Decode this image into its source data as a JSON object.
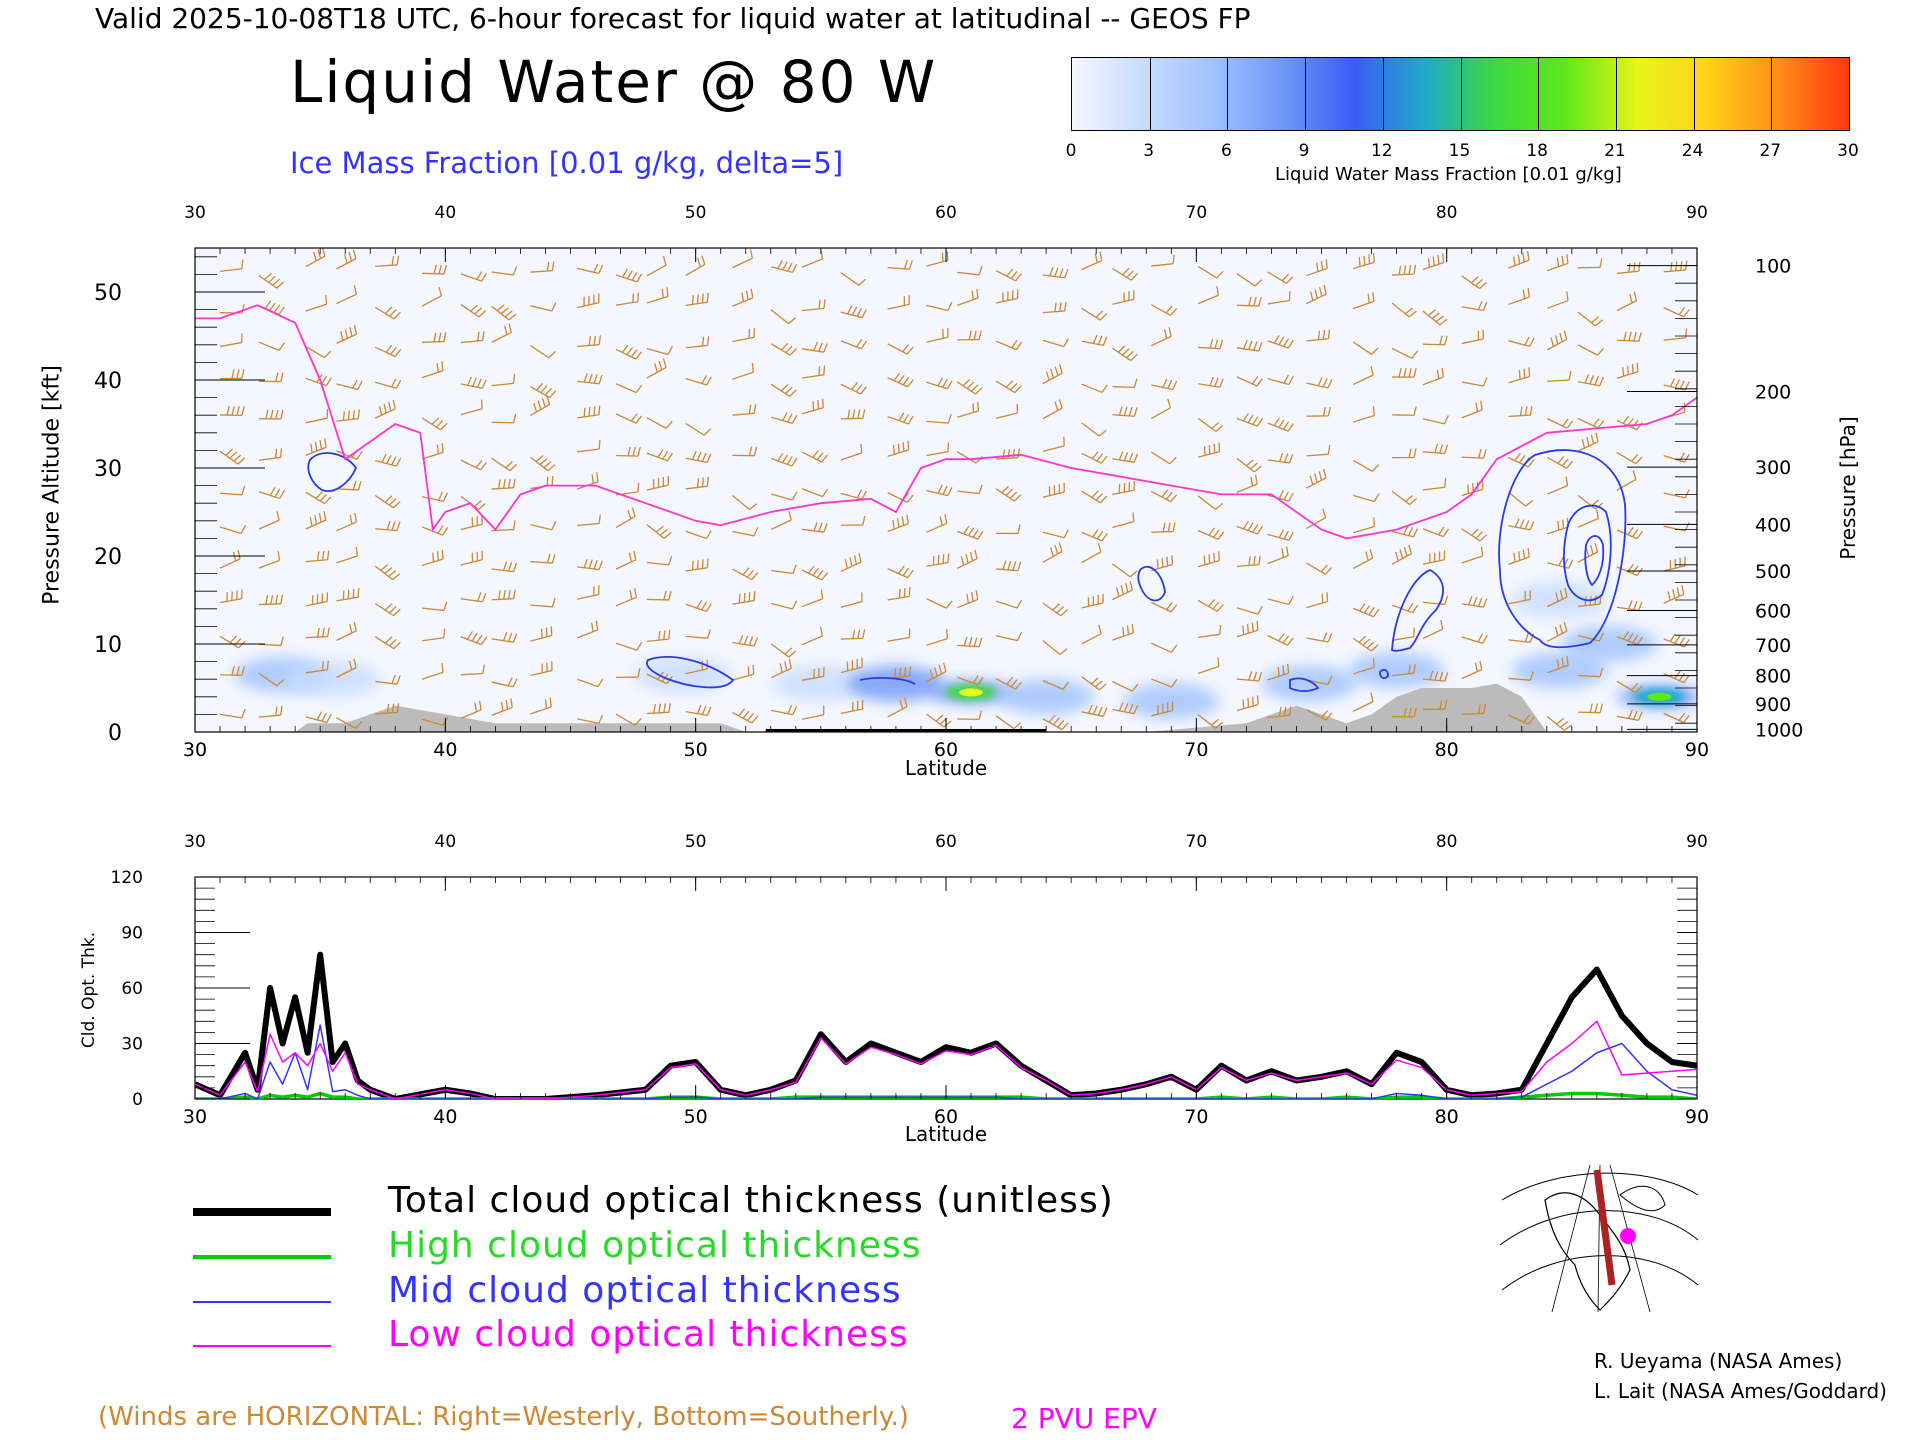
{
  "header": {
    "valid_line": "Valid 2025-10-08T18 UTC, 6-hour forecast for liquid water at latitudinal -- GEOS FP",
    "title": "Liquid Water @ 80 W",
    "subtitle": "Ice Mass Fraction [0.01 g/kg, delta=5]"
  },
  "colorbar": {
    "title": "Liquid Water Mass Fraction [0.01 g/kg]",
    "ticks": [
      "0",
      "3",
      "6",
      "9",
      "12",
      "15",
      "18",
      "21",
      "24",
      "27",
      "30"
    ],
    "colors": [
      "#f4f7ff",
      "#c8dcff",
      "#9fc2ff",
      "#6f96f7",
      "#3c5cf5",
      "#1faac9",
      "#3dd93d",
      "#5fe81a",
      "#e6f51a",
      "#ffd21a",
      "#ff8c1a",
      "#ff3a0a"
    ]
  },
  "colors": {
    "wind_barbs": "#cc8833",
    "pvu_line": "#ff33cc",
    "ice_contours": "#2a3ae6",
    "terrain": "#bbbbbb",
    "total": "#000000",
    "high": "#00cc00",
    "mid": "#3333ff",
    "low": "#ff00ff"
  },
  "chart_data": [
    {
      "type": "heatmap",
      "xlabel": "Latitude",
      "ylabel": "Pressure Altitude [kft]",
      "y2label": "Pressure [hPa]",
      "xlim": [
        30,
        90
      ],
      "ylim": [
        0,
        55
      ],
      "x_ticks": [
        "30",
        "40",
        "50",
        "60",
        "70",
        "80",
        "90"
      ],
      "y_ticks": [
        "0",
        "10",
        "20",
        "30",
        "40",
        "50"
      ],
      "pressure_ticks": [
        {
          "label": "100",
          "kft": 53.0
        },
        {
          "label": "200",
          "kft": 38.7
        },
        {
          "label": "300",
          "kft": 30.1
        },
        {
          "label": "400",
          "kft": 23.6
        },
        {
          "label": "500",
          "kft": 18.3
        },
        {
          "label": "600",
          "kft": 13.8
        },
        {
          "label": "700",
          "kft": 9.9
        },
        {
          "label": "800",
          "kft": 6.4
        },
        {
          "label": "900",
          "kft": 3.2
        },
        {
          "label": "1000",
          "kft": 0.3
        }
      ],
      "pvu_line": {
        "name": "2 PVU EPV",
        "lat": [
          30,
          31,
          32.5,
          34,
          35,
          36,
          37,
          38,
          39,
          39.5,
          40,
          41,
          42,
          43,
          44,
          45,
          46,
          48,
          50,
          51,
          53,
          55,
          57,
          58,
          59,
          60,
          61,
          63,
          65,
          67,
          69,
          71,
          73,
          75,
          76,
          78,
          80,
          81,
          82,
          84,
          86,
          88,
          89,
          90
        ],
        "kft": [
          47,
          47,
          48.5,
          46.5,
          40,
          31,
          33,
          35,
          34,
          23,
          25,
          26,
          23,
          27,
          28,
          28,
          28,
          26,
          24,
          23.5,
          25,
          26,
          26.5,
          25,
          30,
          31,
          31,
          31.5,
          30,
          29,
          28,
          27,
          27,
          23,
          22,
          23,
          25,
          27,
          31,
          34,
          34.5,
          35,
          36,
          38
        ]
      },
      "terrain": {
        "lat": [
          30,
          34,
          34.5,
          36,
          37,
          38,
          40,
          42,
          44,
          46,
          48,
          50,
          51,
          52,
          53,
          55,
          57,
          60,
          62,
          64,
          66,
          68,
          70,
          72,
          73,
          74,
          75,
          76,
          77,
          78,
          79,
          80,
          81,
          82,
          83,
          84,
          90
        ],
        "kft": [
          0,
          0,
          1,
          1,
          2,
          3,
          2,
          1,
          1,
          1,
          1,
          1,
          1,
          0,
          0,
          0,
          0,
          0,
          0,
          0,
          0,
          0,
          0.5,
          1,
          2,
          3,
          2,
          1,
          2,
          4,
          5,
          5,
          5,
          5.5,
          4,
          0,
          0
        ]
      },
      "liquid_water_blobs": [
        {
          "lat": 33.5,
          "kft": 6.5,
          "value": 6
        },
        {
          "lat": 35.5,
          "kft": 6,
          "value": 4
        },
        {
          "lat": 49.5,
          "kft": 6.5,
          "value": 4
        },
        {
          "lat": 55,
          "kft": 5.5,
          "value": 4
        },
        {
          "lat": 58,
          "kft": 5.5,
          "value": 9
        },
        {
          "lat": 61,
          "kft": 4.5,
          "value": 19
        },
        {
          "lat": 64,
          "kft": 4,
          "value": 5
        },
        {
          "lat": 69,
          "kft": 3.5,
          "value": 6
        },
        {
          "lat": 74.5,
          "kft": 5.5,
          "value": 6
        },
        {
          "lat": 78,
          "kft": 7,
          "value": 6
        },
        {
          "lat": 84.5,
          "kft": 15,
          "value": 4
        },
        {
          "lat": 84.5,
          "kft": 7,
          "value": 5
        },
        {
          "lat": 88.5,
          "kft": 4,
          "value": 17
        },
        {
          "lat": 86.5,
          "kft": 10,
          "value": 6
        }
      ]
    },
    {
      "type": "line",
      "xlabel": "Latitude",
      "ylabel": "Cld. Opt. Thk.",
      "xlim": [
        30,
        90
      ],
      "ylim": [
        0,
        120
      ],
      "x_ticks": [
        "30",
        "40",
        "50",
        "60",
        "70",
        "80",
        "90"
      ],
      "y_ticks": [
        "0",
        "30",
        "60",
        "90",
        "120"
      ],
      "x": [
        30,
        31,
        32,
        32.5,
        33,
        33.5,
        34,
        34.5,
        35,
        35.5,
        36,
        36.5,
        37,
        38,
        40,
        41,
        42,
        44,
        46,
        48,
        49,
        50,
        51,
        52,
        53,
        54,
        55,
        56,
        57,
        58,
        59,
        60,
        61,
        62,
        63,
        64,
        65,
        66,
        67,
        68,
        69,
        70,
        71,
        72,
        73,
        74,
        75,
        76,
        77,
        78,
        79,
        80,
        81,
        82,
        83,
        84,
        85,
        86,
        87,
        88,
        89,
        90
      ],
      "series": [
        {
          "name": "Total cloud optical thickness (unitless)",
          "values": [
            8,
            2,
            25,
            5,
            60,
            30,
            55,
            25,
            78,
            20,
            30,
            10,
            5,
            0,
            5,
            3,
            0,
            0,
            2,
            5,
            18,
            20,
            5,
            2,
            5,
            10,
            35,
            20,
            30,
            25,
            20,
            28,
            25,
            30,
            18,
            10,
            2,
            3,
            5,
            8,
            12,
            5,
            18,
            10,
            15,
            10,
            12,
            15,
            8,
            25,
            20,
            5,
            2,
            3,
            5,
            30,
            55,
            70,
            45,
            30,
            20,
            18
          ]
        },
        {
          "name": "High cloud optical thickness",
          "values": [
            0,
            0,
            1,
            0,
            2,
            1,
            2,
            1,
            3,
            1,
            1,
            0,
            0,
            0,
            0,
            0,
            0,
            0,
            0,
            0,
            1,
            1,
            0,
            0,
            0,
            1,
            1,
            1,
            1,
            1,
            1,
            1,
            1,
            1,
            1,
            0,
            0,
            0,
            0,
            0,
            0,
            0,
            1,
            0,
            1,
            0,
            0,
            1,
            0,
            1,
            1,
            0,
            0,
            0,
            1,
            2,
            3,
            3,
            2,
            1,
            1,
            0
          ]
        },
        {
          "name": "Mid cloud optical thickness",
          "values": [
            0,
            0,
            3,
            0,
            20,
            8,
            25,
            5,
            40,
            4,
            5,
            2,
            0,
            0,
            0,
            0,
            0,
            0,
            0,
            0,
            1,
            1,
            0,
            0,
            0,
            0,
            1,
            1,
            1,
            1,
            1,
            1,
            1,
            1,
            0,
            0,
            0,
            0,
            0,
            0,
            0,
            0,
            0,
            0,
            0,
            0,
            0,
            0,
            0,
            3,
            2,
            0,
            0,
            0,
            1,
            8,
            15,
            25,
            30,
            15,
            5,
            2
          ]
        },
        {
          "name": "Low cloud optical thickness",
          "values": [
            8,
            2,
            20,
            4,
            35,
            20,
            25,
            18,
            30,
            15,
            25,
            8,
            5,
            0,
            5,
            3,
            0,
            0,
            2,
            5,
            17,
            19,
            5,
            2,
            5,
            9,
            33,
            19,
            28,
            24,
            19,
            26,
            24,
            29,
            17,
            10,
            2,
            3,
            5,
            8,
            12,
            5,
            17,
            10,
            14,
            10,
            12,
            14,
            8,
            21,
            17,
            5,
            2,
            3,
            4,
            20,
            30,
            42,
            13,
            14,
            15,
            16
          ]
        }
      ]
    }
  ],
  "legend": {
    "total": "Total cloud optical thickness (unitless)",
    "high": "High cloud optical thickness",
    "mid": "Mid cloud optical thickness",
    "low": "Low cloud optical thickness"
  },
  "footer": {
    "winds_note": "(Winds are HORIZONTAL: Right=Westerly, Bottom=Southerly.)",
    "pvu_note": "2 PVU EPV",
    "credit1": "R. Ueyama (NASA Ames)",
    "credit2": "L. Lait (NASA Ames/Goddard)"
  }
}
